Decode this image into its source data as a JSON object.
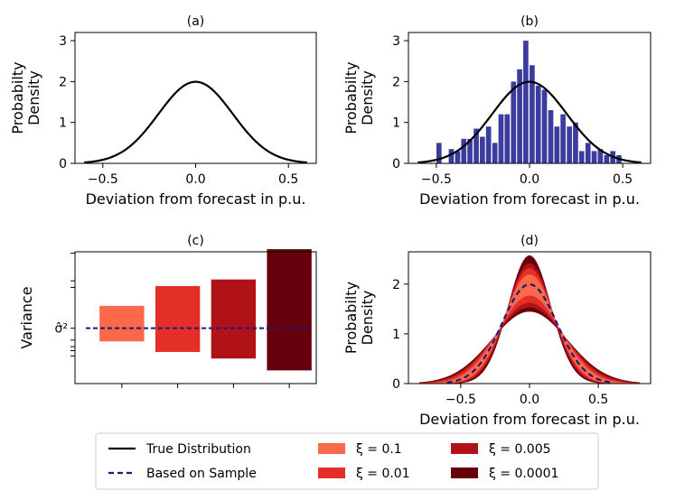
{
  "chart_data": [
    {
      "id": "a",
      "type": "line",
      "title": "(a)",
      "xlabel": "Deviation from forecast in p.u.",
      "ylabel": [
        "Probabilty",
        "Density"
      ],
      "xlim": [
        -0.65,
        0.65
      ],
      "ylim": [
        0,
        3.2
      ],
      "xticks": [
        -0.5,
        0.0,
        0.5
      ],
      "xtick_labels": [
        "−0.5",
        "0.0",
        "0.5"
      ],
      "yticks": [
        0,
        1,
        2,
        3
      ],
      "ytick_labels": [
        "0",
        "1",
        "2",
        "3"
      ],
      "series": [
        {
          "name": "True Distribution",
          "dist": "normal",
          "mean": 0.0,
          "std": 0.2,
          "x_range": [
            -0.6,
            0.6
          ],
          "color": "#000000"
        }
      ]
    },
    {
      "id": "b",
      "type": "bar",
      "title": "(b)",
      "xlabel": "Deviation from forecast in p.u.",
      "ylabel": [
        "Probabilty",
        "Density"
      ],
      "xlim": [
        -0.65,
        0.65
      ],
      "ylim": [
        0,
        3.2
      ],
      "xticks": [
        -0.5,
        0.0,
        0.5
      ],
      "xtick_labels": [
        "−0.5",
        "0.0",
        "0.5"
      ],
      "yticks": [
        0,
        1,
        2,
        3
      ],
      "ytick_labels": [
        "0",
        "1",
        "2",
        "3"
      ],
      "bar_color": "#3c3c9f",
      "bin_width": 0.0333,
      "histogram": {
        "bin_centers": [
          -0.483,
          -0.417,
          -0.383,
          -0.35,
          -0.317,
          -0.283,
          -0.25,
          -0.217,
          -0.183,
          -0.15,
          -0.117,
          -0.083,
          -0.05,
          -0.017,
          0.017,
          0.05,
          0.083,
          0.117,
          0.15,
          0.183,
          0.217,
          0.25,
          0.283,
          0.317,
          0.35,
          0.383,
          0.417,
          0.45,
          0.483
        ],
        "densities": [
          0.5,
          0.35,
          0.3,
          0.6,
          0.6,
          0.85,
          0.65,
          0.9,
          0.5,
          1.2,
          1.2,
          2.0,
          2.3,
          3.0,
          2.4,
          1.9,
          1.8,
          1.3,
          0.9,
          1.2,
          0.9,
          1.0,
          0.3,
          0.5,
          0.3,
          0.35,
          0.2,
          0.3,
          0.2
        ]
      },
      "series": [
        {
          "name": "True Distribution",
          "dist": "normal",
          "mean": 0.0,
          "std": 0.2,
          "x_range": [
            -0.6,
            0.6
          ],
          "color": "#000000"
        }
      ]
    },
    {
      "id": "c",
      "type": "bar",
      "title": "(c)",
      "ylabel": "Variance",
      "y_reference_label": "σ̂²",
      "ylim": [
        0,
        1
      ],
      "reference_line": {
        "name": "Based on Sample",
        "value": 0.42,
        "color": "#1a1a7e",
        "dash": true
      },
      "categories": [
        "ξ = 0.1",
        "ξ = 0.01",
        "ξ = 0.005",
        "ξ = 0.0001"
      ],
      "ranges": [
        {
          "low": 0.32,
          "high": 0.59,
          "color": "#fb694a"
        },
        {
          "low": 0.24,
          "high": 0.74,
          "color": "#e32f27"
        },
        {
          "low": 0.19,
          "high": 0.79,
          "color": "#b11218"
        },
        {
          "low": 0.1,
          "high": 1.02,
          "color": "#67000d"
        }
      ],
      "minor_yticks": [
        0.21,
        0.25,
        0.28,
        0.33,
        0.73,
        0.78,
        0.99
      ]
    },
    {
      "id": "d",
      "type": "area",
      "title": "(d)",
      "xlabel": "Deviation from forecast in p.u.",
      "ylabel": [
        "Probabilty",
        "Density"
      ],
      "xlim": [
        -0.88,
        0.88
      ],
      "ylim": [
        0,
        2.65
      ],
      "xticks": [
        -0.5,
        0.0,
        0.5
      ],
      "xtick_labels": [
        "−0.5",
        "0.0",
        "0.5"
      ],
      "yticks": [
        0,
        1,
        2
      ],
      "ytick_labels": [
        "0",
        "1",
        "2"
      ],
      "x_range": [
        -0.8,
        0.8
      ],
      "bands": [
        {
          "name": "ξ = 0.0001",
          "std_min": 0.155,
          "std_max": 0.275,
          "color": "#67000d"
        },
        {
          "name": "ξ = 0.005",
          "std_min": 0.165,
          "std_max": 0.26,
          "color": "#b11218"
        },
        {
          "name": "ξ = 0.01",
          "std_min": 0.172,
          "std_max": 0.245,
          "color": "#e32f27"
        },
        {
          "name": "ξ = 0.1",
          "std_min": 0.182,
          "std_max": 0.225,
          "color": "#fb694a"
        }
      ],
      "sample_line": {
        "name": "Based on Sample",
        "mean": 0.0,
        "std": 0.2,
        "x_range": [
          -0.6,
          0.6
        ],
        "color": "#1a1a7e"
      }
    }
  ],
  "legend": {
    "placement": "bottom-center",
    "entries": [
      {
        "label": "True Distribution",
        "kind": "line",
        "color": "#000000"
      },
      {
        "label": "Based on Sample",
        "kind": "dash",
        "color": "#1a1a7e"
      },
      {
        "label": "ξ = 0.1",
        "kind": "patch",
        "color": "#fb694a"
      },
      {
        "label": "ξ = 0.01",
        "kind": "patch",
        "color": "#e32f27"
      },
      {
        "label": "ξ = 0.005",
        "kind": "patch",
        "color": "#b11218"
      },
      {
        "label": "ξ = 0.0001",
        "kind": "patch",
        "color": "#67000d"
      }
    ]
  }
}
